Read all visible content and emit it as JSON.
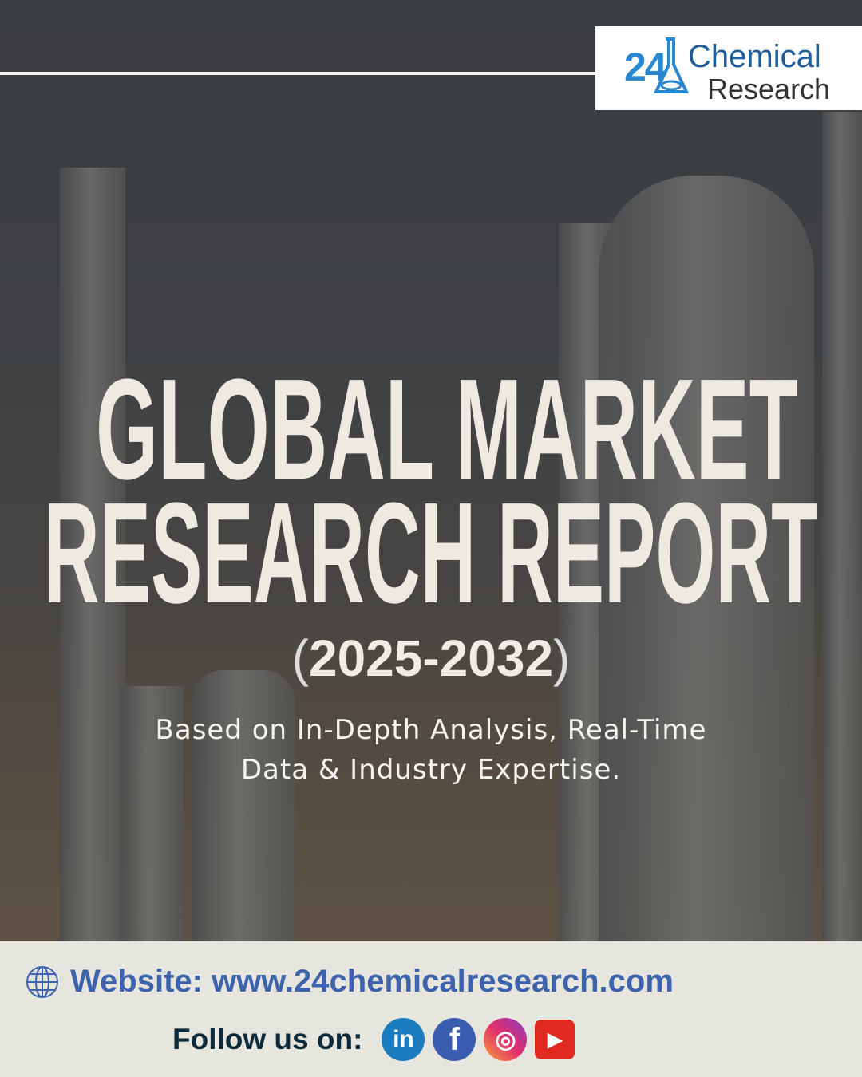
{
  "logo": {
    "number": "24",
    "line1": "Chemical",
    "line2": "Research"
  },
  "title": {
    "line1": "GLOBAL MARKET",
    "line2": "RESEARCH REPORT",
    "years": "2025-2032",
    "open": "(",
    "close": ")"
  },
  "subtitle": {
    "line1": "Based on In-Depth Analysis, Real-Time",
    "line2": "Data & Industry Expertise."
  },
  "footer": {
    "website": "Website: www.24chemicalresearch.com",
    "follow": "Follow us on:",
    "social": [
      {
        "icon": "linkedin-icon",
        "glyph": "in",
        "color": "#1a7bbf"
      },
      {
        "icon": "facebook-icon",
        "glyph": "f",
        "color": "#3b5db0"
      },
      {
        "icon": "instagram-icon",
        "glyph": "◎",
        "color": "#e1306c"
      },
      {
        "icon": "youtube-icon",
        "glyph": "▶",
        "color": "#e02a20"
      }
    ]
  },
  "colors": {
    "accent": "#3d63ad",
    "footer_bg": "#e6e5de"
  }
}
